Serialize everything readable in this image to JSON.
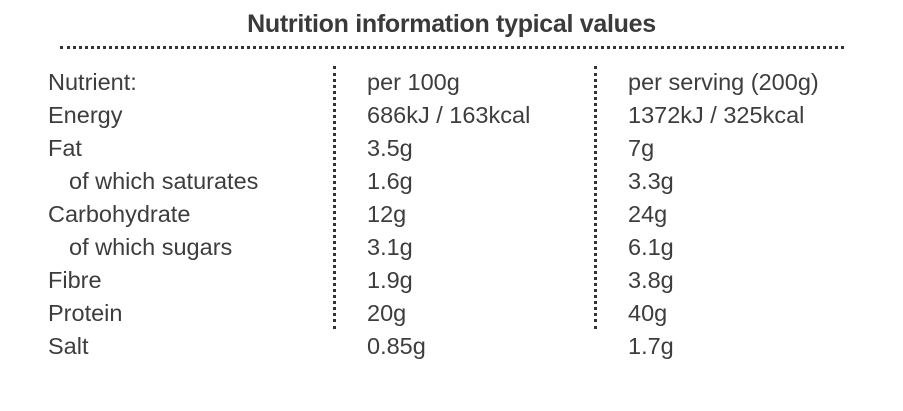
{
  "title": "Nutrition information typical values",
  "header": {
    "nutrient": "Nutrient:",
    "per100": "per 100g",
    "perServing": "per serving (200g)"
  },
  "rows": [
    {
      "nutrient": "Energy",
      "per100": "686kJ / 163kcal",
      "perServing": "1372kJ / 325kcal"
    },
    {
      "nutrient": "Fat",
      "per100": "3.5g",
      "perServing": "7g"
    },
    {
      "nutrient": "of which saturates",
      "per100": "1.6g",
      "perServing": "3.3g"
    },
    {
      "nutrient": "Carbohydrate",
      "per100": "12g",
      "perServing": "24g"
    },
    {
      "nutrient": "of which sugars",
      "per100": "3.1g",
      "perServing": "6.1g"
    },
    {
      "nutrient": "Fibre",
      "per100": "1.9g",
      "perServing": "3.8g"
    },
    {
      "nutrient": "Protein",
      "per100": "20g",
      "perServing": "40g"
    },
    {
      "nutrient": "Salt",
      "per100": "0.85g",
      "perServing": "1.7g"
    }
  ]
}
